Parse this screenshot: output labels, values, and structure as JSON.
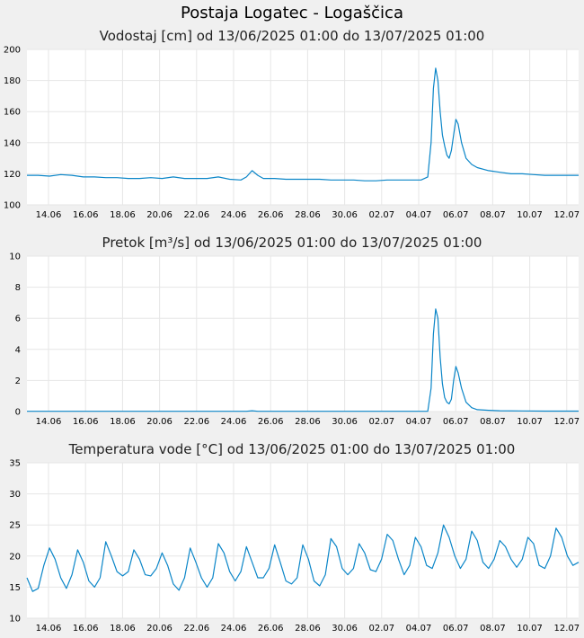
{
  "page": {
    "title": "Postaja Logatec - Logaščica"
  },
  "colors": {
    "line": "#0b86c8",
    "grid": "#e6e6e6",
    "plot_bg": "#ffffff",
    "page_bg": "#f0f0f0"
  },
  "chart_data": [
    {
      "type": "line",
      "title": "Vodostaj [cm] od 13/06/2025 01:00 do 13/07/2025 01:00",
      "xlabel": "",
      "ylabel": "",
      "x_tick_labels": [
        "14.06",
        "16.06",
        "18.06",
        "20.06",
        "22.06",
        "24.06",
        "26.06",
        "28.06",
        "30.06",
        "02.07",
        "04.07",
        "06.07",
        "08.07",
        "10.07",
        "12.07"
      ],
      "ylim": [
        100,
        200
      ],
      "yticks": [
        100,
        120,
        140,
        160,
        180,
        200
      ],
      "grid": true,
      "series": [
        {
          "points": [
            [
              0.0,
              119
            ],
            [
              1.0,
              119
            ],
            [
              2.0,
              118.5
            ],
            [
              3.0,
              119.5
            ],
            [
              4.0,
              119
            ],
            [
              5.0,
              118
            ],
            [
              6.0,
              118
            ],
            [
              7.0,
              117.5
            ],
            [
              8.0,
              117.5
            ],
            [
              9.0,
              117
            ],
            [
              10.0,
              117
            ],
            [
              11.0,
              117.5
            ],
            [
              12.0,
              117
            ],
            [
              13.0,
              118
            ],
            [
              14.0,
              117
            ],
            [
              15.0,
              117
            ],
            [
              16.0,
              117
            ],
            [
              17.0,
              118
            ],
            [
              18.0,
              116.5
            ],
            [
              19.0,
              116
            ],
            [
              19.5,
              118
            ],
            [
              20.0,
              122
            ],
            [
              20.5,
              119
            ],
            [
              21.0,
              117
            ],
            [
              22.0,
              117
            ],
            [
              23.0,
              116.5
            ],
            [
              24.0,
              116.5
            ],
            [
              25.0,
              116.5
            ],
            [
              26.0,
              116.5
            ],
            [
              27.0,
              116
            ],
            [
              28.0,
              116
            ],
            [
              29.0,
              116
            ],
            [
              30.0,
              115.5
            ],
            [
              31.0,
              115.5
            ],
            [
              32.0,
              116
            ],
            [
              33.0,
              116
            ],
            [
              34.0,
              116
            ],
            [
              35.0,
              116
            ],
            [
              35.6,
              118
            ],
            [
              35.9,
              140
            ],
            [
              36.1,
              175
            ],
            [
              36.3,
              188
            ],
            [
              36.5,
              180
            ],
            [
              36.7,
              160
            ],
            [
              36.9,
              145
            ],
            [
              37.1,
              138
            ],
            [
              37.3,
              132
            ],
            [
              37.5,
              130
            ],
            [
              37.7,
              135
            ],
            [
              37.9,
              145
            ],
            [
              38.1,
              155
            ],
            [
              38.3,
              152
            ],
            [
              38.6,
              140
            ],
            [
              39.0,
              130
            ],
            [
              39.5,
              126
            ],
            [
              40.0,
              124
            ],
            [
              41.0,
              122
            ],
            [
              42.0,
              121
            ],
            [
              43.0,
              120
            ],
            [
              44.0,
              120
            ],
            [
              45.0,
              119.5
            ],
            [
              46.0,
              119
            ],
            [
              47.0,
              119
            ],
            [
              48.0,
              119
            ],
            [
              49.0,
              119
            ]
          ]
        }
      ]
    },
    {
      "type": "line",
      "title": "Pretok [m³/s] od 13/06/2025 01:00 do 13/07/2025 01:00",
      "xlabel": "",
      "ylabel": "",
      "x_tick_labels": [
        "14.06",
        "16.06",
        "18.06",
        "20.06",
        "22.06",
        "24.06",
        "26.06",
        "28.06",
        "30.06",
        "02.07",
        "04.07",
        "06.07",
        "08.07",
        "10.07",
        "12.07"
      ],
      "ylim": [
        0,
        10
      ],
      "yticks": [
        0,
        2,
        4,
        6,
        8,
        10
      ],
      "grid": true,
      "series": [
        {
          "points": [
            [
              0.0,
              0.02
            ],
            [
              10.0,
              0.02
            ],
            [
              19.5,
              0.02
            ],
            [
              20.0,
              0.05
            ],
            [
              20.5,
              0.02
            ],
            [
              35.6,
              0.02
            ],
            [
              35.9,
              1.5
            ],
            [
              36.1,
              5.0
            ],
            [
              36.3,
              6.6
            ],
            [
              36.5,
              6.0
            ],
            [
              36.7,
              3.5
            ],
            [
              36.9,
              1.8
            ],
            [
              37.1,
              0.9
            ],
            [
              37.3,
              0.6
            ],
            [
              37.5,
              0.5
            ],
            [
              37.7,
              0.8
            ],
            [
              37.9,
              2.0
            ],
            [
              38.1,
              2.9
            ],
            [
              38.3,
              2.5
            ],
            [
              38.6,
              1.5
            ],
            [
              39.0,
              0.6
            ],
            [
              39.5,
              0.25
            ],
            [
              40.0,
              0.12
            ],
            [
              41.0,
              0.08
            ],
            [
              42.0,
              0.05
            ],
            [
              44.0,
              0.04
            ],
            [
              46.0,
              0.03
            ],
            [
              49.0,
              0.03
            ]
          ]
        }
      ]
    },
    {
      "type": "line",
      "title": "Temperatura vode [°C] od 13/06/2025 01:00 do 13/07/2025 01:00",
      "xlabel": "",
      "ylabel": "",
      "x_tick_labels": [
        "14.06",
        "16.06",
        "18.06",
        "20.06",
        "22.06",
        "24.06",
        "26.06",
        "28.06",
        "30.06",
        "02.07",
        "04.07",
        "06.07",
        "08.07",
        "10.07",
        "12.07"
      ],
      "ylim": [
        10,
        35
      ],
      "yticks": [
        10,
        15,
        20,
        25,
        30,
        35
      ],
      "grid": true,
      "series": [
        {
          "segments": [
            [
              [
                0.0,
                16.5
              ],
              [
                0.5,
                14.3
              ],
              [
                1.0,
                14.8
              ],
              [
                1.5,
                18.5
              ],
              [
                2.0,
                21.3
              ],
              [
                2.5,
                19.5
              ],
              [
                3.0,
                16.5
              ],
              [
                3.5,
                14.8
              ],
              [
                4.0,
                17.0
              ],
              [
                4.5,
                21.0
              ],
              [
                5.0,
                19.0
              ],
              [
                5.5,
                16.0
              ],
              [
                6.0,
                15.0
              ],
              [
                6.5,
                16.5
              ],
              [
                7.0,
                22.3
              ],
              [
                7.5,
                20.0
              ],
              [
                8.0,
                17.5
              ],
              [
                8.5,
                16.8
              ],
              [
                9.0,
                17.5
              ],
              [
                9.5,
                21.0
              ],
              [
                10.0,
                19.5
              ],
              [
                10.5,
                17.0
              ],
              [
                11.0,
                16.8
              ],
              [
                11.5,
                18.0
              ],
              [
                12.0,
                20.5
              ],
              [
                12.5,
                18.5
              ],
              [
                13.0,
                15.5
              ],
              [
                13.5,
                14.5
              ],
              [
                14.0,
                16.5
              ],
              [
                14.5,
                21.3
              ],
              [
                15.0,
                19.0
              ],
              [
                15.5,
                16.5
              ],
              [
                16.0,
                15.0
              ],
              [
                16.5,
                16.5
              ],
              [
                17.0,
                22.0
              ],
              [
                17.5,
                20.5
              ],
              [
                18.0,
                17.5
              ],
              [
                18.5,
                16.0
              ],
              [
                19.0,
                17.5
              ],
              [
                19.5,
                21.5
              ],
              [
                20.0,
                19.0
              ],
              [
                20.5,
                16.5
              ],
              [
                21.0,
                16.5
              ],
              [
                21.5,
                18.0
              ],
              [
                22.0,
                21.8
              ],
              [
                22.5,
                19.0
              ],
              [
                23.0,
                16.0
              ],
              [
                23.5,
                15.5
              ],
              [
                24.0,
                16.5
              ],
              [
                24.5,
                21.8
              ],
              [
                25.0,
                19.5
              ],
              [
                25.5,
                16.0
              ],
              [
                26.0,
                15.2
              ],
              [
                26.5,
                17.0
              ],
              [
                27.0,
                22.8
              ],
              [
                27.5,
                21.5
              ],
              [
                28.0,
                18.0
              ],
              [
                28.5,
                17.0
              ],
              [
                29.0,
                18.0
              ],
              [
                29.5,
                22.0
              ],
              [
                30.0,
                20.5
              ],
              [
                30.5,
                17.8
              ],
              [
                31.0,
                17.5
              ],
              [
                31.5,
                19.5
              ],
              [
                32.0,
                23.5
              ],
              [
                32.5,
                22.5
              ],
              [
                33.0,
                19.5
              ],
              [
                33.5,
                17.0
              ],
              [
                34.0,
                18.5
              ],
              [
                34.5,
                23.0
              ],
              [
                35.0,
                21.5
              ],
              [
                35.5,
                18.5
              ],
              [
                36.0,
                18.0
              ],
              [
                36.5,
                20.5
              ],
              [
                37.0,
                25.0
              ],
              [
                37.5,
                23.0
              ],
              [
                38.0,
                20.0
              ],
              [
                38.5,
                18.0
              ],
              [
                39.0,
                19.5
              ],
              [
                39.5,
                24.0
              ],
              [
                40.0,
                22.5
              ],
              [
                40.5,
                19.0
              ],
              [
                41.0,
                18.0
              ],
              [
                41.5,
                19.5
              ],
              [
                42.0,
                22.5
              ],
              [
                42.5,
                21.5
              ],
              [
                43.0,
                19.5
              ],
              [
                43.5,
                18.2
              ],
              [
                44.0,
                19.5
              ],
              [
                44.5,
                23.0
              ],
              [
                45.0,
                22.0
              ],
              [
                45.5,
                18.5
              ],
              [
                46.0,
                18.0
              ],
              [
                46.5,
                20.0
              ],
              [
                47.0,
                24.5
              ],
              [
                47.5,
                23.0
              ],
              [
                48.0,
                20.0
              ],
              [
                48.5,
                18.5
              ],
              [
                49.0,
                19.0
              ]
            ]
          ]
        }
      ]
    }
  ]
}
